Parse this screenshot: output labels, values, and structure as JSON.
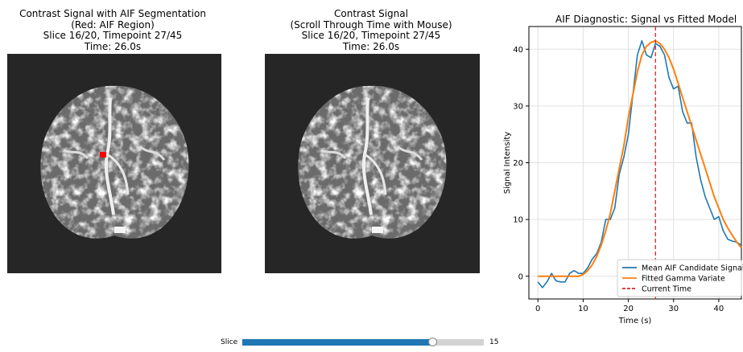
{
  "left_panel": {
    "title_lines": [
      "Contrast Signal with AIF Segmentation",
      "(Red: AIF Region)",
      "Slice 16/20, Timepoint 27/45",
      "Time: 26.0s"
    ],
    "aif_marker_color": "#ff0000"
  },
  "middle_panel": {
    "title_lines": [
      "Contrast Signal",
      "(Scroll Through Time with Mouse)",
      "Slice 16/20, Timepoint 27/45",
      "Time: 26.0s"
    ]
  },
  "slider": {
    "label": "Slice",
    "value": 15,
    "value_text": "15",
    "min": 0,
    "max": 19,
    "fill_color": "#1f77b4"
  },
  "chart_data": {
    "type": "line",
    "title": "AIF Diagnostic: Signal vs Fitted Model",
    "xlabel": "Time (s)",
    "ylabel": "Signal Intensity",
    "xlim": [
      -2,
      45
    ],
    "ylim": [
      -4,
      44
    ],
    "xticks": [
      0,
      10,
      20,
      30,
      40
    ],
    "yticks": [
      0,
      10,
      20,
      30,
      40
    ],
    "grid": true,
    "legend": "lower-right",
    "series": [
      {
        "name": "Mean AIF Candidate Signal",
        "color": "#1f77b4",
        "style": "solid",
        "x": [
          0,
          1,
          2,
          3,
          4,
          5,
          6,
          7,
          8,
          9,
          10,
          11,
          12,
          13,
          14,
          15,
          16,
          17,
          18,
          19,
          20,
          21,
          22,
          23,
          24,
          25,
          26,
          27,
          28,
          29,
          30,
          31,
          32,
          33,
          34,
          35,
          36,
          37,
          38,
          39,
          40,
          41,
          42,
          43,
          44,
          45
        ],
        "y": [
          -1,
          -2,
          -1,
          0.5,
          -0.8,
          -1,
          -1,
          0.5,
          1,
          0.5,
          0.5,
          1.5,
          3,
          4,
          6,
          10,
          10,
          12,
          18,
          21,
          25,
          32,
          39,
          41.5,
          39,
          38.5,
          41,
          40.5,
          39,
          35,
          33,
          33.5,
          29,
          27,
          27,
          21,
          17,
          14,
          12,
          10,
          10.5,
          8,
          6.5,
          6.2,
          6,
          5.5
        ]
      },
      {
        "name": "Fitted Gamma Variate",
        "color": "#ff7f0e",
        "style": "solid",
        "x": [
          0,
          2,
          4,
          6,
          8,
          9,
          10,
          11,
          12,
          13,
          14,
          15,
          16,
          17,
          18,
          19,
          20,
          21,
          22,
          23,
          24,
          25,
          26,
          27,
          28,
          29,
          30,
          31,
          32,
          33,
          34,
          35,
          36,
          37,
          38,
          39,
          40,
          41,
          42,
          43,
          44,
          45
        ],
        "y": [
          0,
          0,
          0,
          0,
          0,
          0,
          0.3,
          1,
          2,
          3.5,
          5.5,
          8,
          11,
          15,
          19,
          23,
          28,
          32,
          36,
          39,
          40.5,
          41.2,
          41.5,
          41,
          40,
          38.5,
          36.5,
          34,
          31.5,
          29,
          26.5,
          24,
          21.5,
          19,
          16.5,
          14,
          12,
          10,
          8.5,
          7.2,
          6,
          5
        ]
      },
      {
        "name": "Current Time",
        "color": "#d62728",
        "style": "dashed",
        "x_value": 26.0
      }
    ]
  }
}
